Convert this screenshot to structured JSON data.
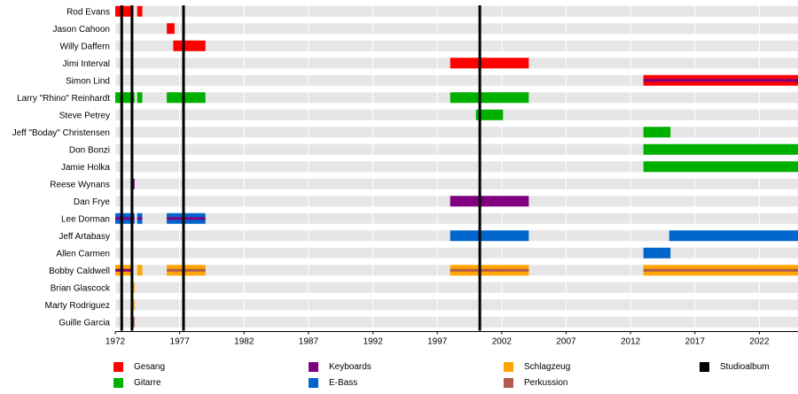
{
  "chart_data": {
    "type": "timeline",
    "title": "",
    "xlim": [
      1972,
      2025
    ],
    "x_ticks": [
      1972,
      1977,
      1982,
      1987,
      1992,
      1997,
      2002,
      2007,
      2012,
      2017,
      2022
    ],
    "grid": true,
    "legend_position": "bottom",
    "roles": [
      {
        "key": "vocals",
        "name": "Gesang",
        "color": "#ff0000"
      },
      {
        "key": "guitar",
        "name": "Gitarre",
        "color": "#00b000"
      },
      {
        "key": "keyboards",
        "name": "Keyboards",
        "color": "#800080"
      },
      {
        "key": "bass",
        "name": "E-Bass",
        "color": "#0066cc"
      },
      {
        "key": "drums",
        "name": "Schlagzeug",
        "color": "#ffa500"
      },
      {
        "key": "percussion",
        "name": "Perkussion",
        "color": "#b05a50"
      },
      {
        "key": "album",
        "name": "Studioalbum",
        "color": "#000000"
      }
    ],
    "albums": [
      1972.5,
      1973.3,
      1977.3,
      2000.3
    ],
    "members": [
      {
        "name": "Rod Evans",
        "bars": [
          {
            "role": "vocals",
            "start": 1972.0,
            "end": 1973.4
          },
          {
            "role": "vocals",
            "start": 1973.7,
            "end": 1974.1
          }
        ]
      },
      {
        "name": "Jason Cahoon",
        "bars": [
          {
            "role": "vocals",
            "start": 1976.0,
            "end": 1976.6
          }
        ]
      },
      {
        "name": "Willy Daffern",
        "bars": [
          {
            "role": "vocals",
            "start": 1976.5,
            "end": 1979.0
          }
        ]
      },
      {
        "name": "Jimi Interval",
        "bars": [
          {
            "role": "vocals",
            "start": 1998.0,
            "end": 2004.1
          }
        ]
      },
      {
        "name": "Simon Lind",
        "bars": [
          {
            "role": "vocals",
            "accent": "keyboards",
            "start": 2013.0,
            "end": 2025.0
          }
        ]
      },
      {
        "name": "Larry \"Rhino\" Reinhardt",
        "bars": [
          {
            "role": "guitar",
            "start": 1972.0,
            "end": 1973.5
          },
          {
            "role": "guitar",
            "start": 1973.7,
            "end": 1974.1
          },
          {
            "role": "guitar",
            "start": 1976.0,
            "end": 1979.0
          },
          {
            "role": "guitar",
            "start": 1998.0,
            "end": 2004.1
          }
        ]
      },
      {
        "name": "Steve Petrey",
        "bars": [
          {
            "role": "guitar",
            "start": 2000.0,
            "end": 2002.1
          }
        ]
      },
      {
        "name": "Jeff \"Boday\" Christensen",
        "bars": [
          {
            "role": "guitar",
            "start": 2013.0,
            "end": 2015.1
          }
        ]
      },
      {
        "name": "Don Bonzi",
        "bars": [
          {
            "role": "guitar",
            "start": 2013.0,
            "end": 2025.0
          }
        ]
      },
      {
        "name": "Jamie Holka",
        "bars": [
          {
            "role": "guitar",
            "start": 2013.0,
            "end": 2025.0
          }
        ]
      },
      {
        "name": "Reese Wynans",
        "bars": [
          {
            "role": "keyboards",
            "start": 1973.2,
            "end": 1973.5
          }
        ]
      },
      {
        "name": "Dan Frye",
        "bars": [
          {
            "role": "keyboards",
            "start": 1998.0,
            "end": 2004.1
          }
        ]
      },
      {
        "name": "Lee Dorman",
        "bars": [
          {
            "role": "bass",
            "accent": "keyboards",
            "start": 1972.0,
            "end": 1973.5
          },
          {
            "role": "bass",
            "accent": "keyboards",
            "start": 1973.7,
            "end": 1974.1
          },
          {
            "role": "bass",
            "accent": "keyboards",
            "start": 1976.0,
            "end": 1979.0
          }
        ]
      },
      {
        "name": "Jeff Artabasy",
        "bars": [
          {
            "role": "bass",
            "start": 1998.0,
            "end": 2004.1
          },
          {
            "role": "bass",
            "start": 2015.0,
            "end": 2025.0
          }
        ]
      },
      {
        "name": "Allen Carmen",
        "bars": [
          {
            "role": "bass",
            "start": 2013.0,
            "end": 2015.1
          }
        ]
      },
      {
        "name": "Bobby Caldwell",
        "bars": [
          {
            "role": "drums",
            "accent": "keyboards",
            "start": 1972.0,
            "end": 1973.4
          },
          {
            "role": "drums",
            "start": 1973.7,
            "end": 1974.1
          },
          {
            "role": "drums",
            "accent": "percussion",
            "start": 1976.0,
            "end": 1979.0
          },
          {
            "role": "drums",
            "accent": "percussion",
            "start": 1998.0,
            "end": 2004.1
          },
          {
            "role": "drums",
            "accent": "percussion",
            "start": 2013.0,
            "end": 2025.0
          }
        ]
      },
      {
        "name": "Brian Glascock",
        "bars": [
          {
            "role": "drums",
            "start": 1973.2,
            "end": 1973.5
          }
        ]
      },
      {
        "name": "Marty Rodriguez",
        "bars": [
          {
            "role": "drums",
            "start": 1973.2,
            "end": 1973.5
          }
        ]
      },
      {
        "name": "Guille Garcia",
        "bars": [
          {
            "role": "percussion",
            "start": 1973.2,
            "end": 1973.5
          }
        ]
      }
    ]
  }
}
